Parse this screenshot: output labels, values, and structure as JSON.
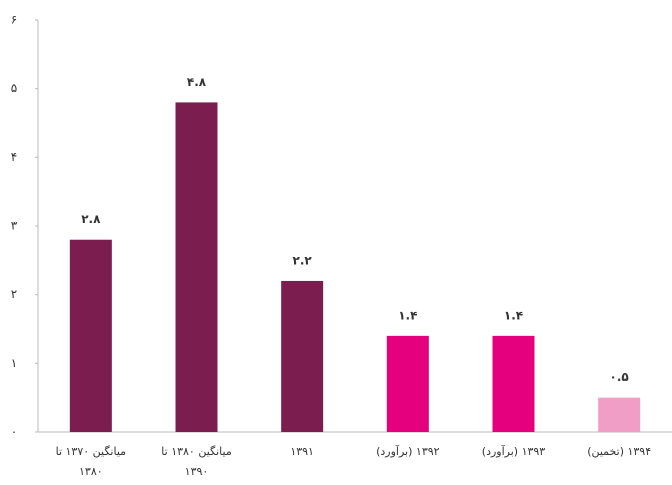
{
  "chart_data": {
    "type": "bar",
    "categories": [
      "میانگین ۱۳۷۰ تا ۱۳۸۰",
      "میانگین ۱۳۸۰ تا ۱۳۹۰",
      "۱۳۹۱",
      "۱۳۹۲ (برآورد)",
      "۱۳۹۳ (برآورد)",
      "۱۳۹۴ (تخمین)"
    ],
    "values": [
      2.8,
      4.8,
      2.2,
      1.4,
      1.4,
      0.5
    ],
    "value_labels": [
      "۲.۸",
      "۴.۸",
      "۲.۲",
      "۱.۴",
      "۱.۴",
      "۰.۵"
    ],
    "colors": [
      "#7b1e4f",
      "#7b1e4f",
      "#7b1e4f",
      "#e5007d",
      "#e5007d",
      "#f19ec6"
    ],
    "ylim": [
      0,
      6
    ],
    "yticks": [
      {
        "value": 0,
        "label": "۰"
      },
      {
        "value": 1,
        "label": "۱"
      },
      {
        "value": 2,
        "label": "۲"
      },
      {
        "value": 3,
        "label": "۳"
      },
      {
        "value": 4,
        "label": "۴"
      },
      {
        "value": 5,
        "label": "۵"
      },
      {
        "value": 6,
        "label": "۶"
      }
    ],
    "grid": false
  }
}
